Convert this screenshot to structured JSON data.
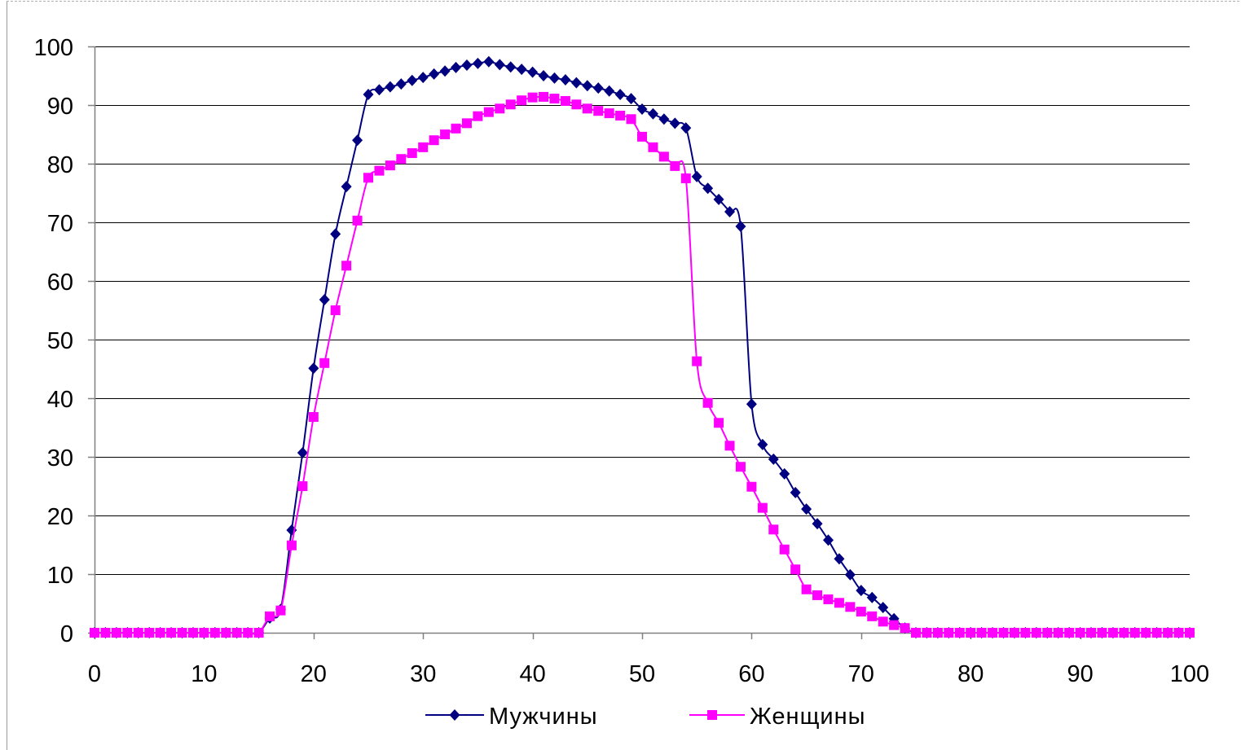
{
  "chart_data": {
    "type": "line",
    "x": [
      0,
      1,
      2,
      3,
      4,
      5,
      6,
      7,
      8,
      9,
      10,
      11,
      12,
      13,
      14,
      15,
      16,
      17,
      18,
      19,
      20,
      21,
      22,
      23,
      24,
      25,
      26,
      27,
      28,
      29,
      30,
      31,
      32,
      33,
      34,
      35,
      36,
      37,
      38,
      39,
      40,
      41,
      42,
      43,
      44,
      45,
      46,
      47,
      48,
      49,
      50,
      51,
      52,
      53,
      54,
      55,
      56,
      57,
      58,
      59,
      60,
      61,
      62,
      63,
      64,
      65,
      66,
      67,
      68,
      69,
      70,
      71,
      72,
      73,
      74,
      75,
      76,
      77,
      78,
      79,
      80,
      81,
      82,
      83,
      84,
      85,
      86,
      87,
      88,
      89,
      90,
      91,
      92,
      93,
      94,
      95,
      96,
      97,
      98,
      99,
      100
    ],
    "series": [
      {
        "name": "Мужчины",
        "color": "#000080",
        "values": [
          0,
          0,
          0,
          0,
          0,
          0,
          0,
          0,
          0,
          0,
          0,
          0,
          0,
          0,
          0,
          0,
          2.5,
          4,
          17.5,
          30.7,
          45.1,
          56.8,
          68,
          76.1,
          84,
          91.8,
          92.6,
          93.1,
          93.6,
          94.2,
          94.7,
          95.3,
          95.8,
          96.4,
          96.8,
          97.1,
          97.4,
          96.9,
          96.5,
          96.1,
          95.6,
          95,
          94.6,
          94.3,
          93.8,
          93.3,
          92.9,
          92.4,
          91.8,
          91.1,
          89.3,
          88.5,
          87.6,
          86.9,
          86.1,
          77.8,
          75.8,
          73.9,
          71.8,
          69.3,
          39,
          32.1,
          29.6,
          27.1,
          23.9,
          21.1,
          18.6,
          15.8,
          12.6,
          9.9,
          7.2,
          6,
          4.3,
          2.4,
          0.8,
          0,
          0,
          0,
          0,
          0,
          0,
          0,
          0,
          0,
          0,
          0,
          0,
          0,
          0,
          0,
          0,
          0,
          0,
          0,
          0,
          0,
          0,
          0,
          0,
          0,
          0
        ]
      },
      {
        "name": "Женщины",
        "color": "#ff00ff",
        "values": [
          0,
          0,
          0,
          0,
          0,
          0,
          0,
          0,
          0,
          0,
          0,
          0,
          0,
          0,
          0,
          0,
          2.8,
          3.8,
          14.9,
          25,
          36.8,
          46,
          55,
          62.6,
          70.3,
          77.6,
          78.8,
          79.7,
          80.8,
          81.8,
          82.8,
          84,
          85,
          86,
          86.9,
          88.1,
          88.8,
          89.4,
          90.1,
          90.8,
          91.3,
          91.4,
          91.1,
          90.7,
          90.1,
          89.4,
          89,
          88.6,
          88.2,
          87.6,
          84.6,
          82.8,
          81.2,
          79.6,
          77.5,
          46.3,
          39.2,
          35.8,
          31.9,
          28.3,
          24.9,
          21.3,
          17.6,
          14.2,
          10.8,
          7.4,
          6.4,
          5.7,
          5.1,
          4.4,
          3.6,
          2.8,
          1.9,
          1.3,
          0.8,
          0,
          0,
          0,
          0,
          0,
          0,
          0,
          0,
          0,
          0,
          0,
          0,
          0,
          0,
          0,
          0,
          0,
          0,
          0,
          0,
          0,
          0,
          0,
          0,
          0,
          0
        ]
      }
    ],
    "xlim": [
      0,
      100
    ],
    "ylim": [
      0,
      100
    ],
    "x_ticks": [
      0,
      10,
      20,
      30,
      40,
      50,
      60,
      70,
      80,
      90,
      100
    ],
    "y_ticks": [
      0,
      10,
      20,
      30,
      40,
      50,
      60,
      70,
      80,
      90,
      100
    ],
    "grid": true,
    "legend": "bottom"
  }
}
